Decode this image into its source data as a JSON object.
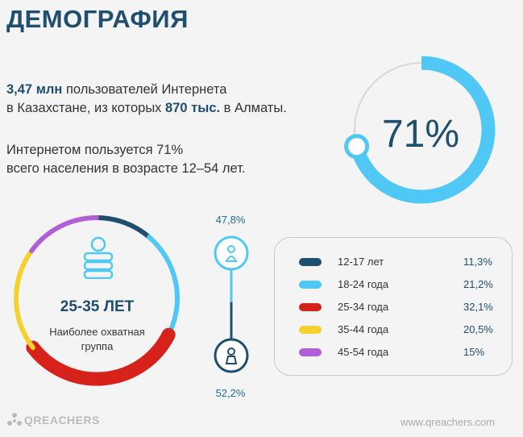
{
  "header": {
    "title": "ДЕМОГРАФИЯ"
  },
  "stats": {
    "users_value": "3,47 млн",
    "users_text": " пользователей Интернета",
    "line2_prefix": "в Казахстане, из которых ",
    "almaty_value": "870 тыс.",
    "line2_suffix": " в Алматы.",
    "pct_line1": "Интернетом пользуется 71%",
    "pct_line2": "всего населения в возрасте 12–54 лет."
  },
  "penetration": {
    "label": "71%",
    "value": 71
  },
  "age_group": {
    "title": "25-35 ЛЕТ",
    "subtitle_line1": "Наиболее охватная",
    "subtitle_line2": "группа"
  },
  "gender": {
    "female_pct": "47,8%",
    "male_pct": "52,2%"
  },
  "chart_data": [
    {
      "type": "pie",
      "title": "",
      "values": [
        71,
        29
      ],
      "colors": [
        "#4fc8f5",
        "#d8d8d8"
      ]
    },
    {
      "type": "pie",
      "title": "",
      "categories": [
        "12-17 лет",
        "18-24 года",
        "25-34 года",
        "35-44 года",
        "45-54 года"
      ],
      "values": [
        11.3,
        21.2,
        32.1,
        20.5,
        15
      ],
      "value_labels": [
        "11,3%",
        "21,2%",
        "32,1%",
        "20,5%",
        "15%"
      ],
      "colors": [
        "#1f4e6e",
        "#4fc8f5",
        "#d6221b",
        "#f5d130",
        "#b15fd6"
      ],
      "legend": "right"
    },
    {
      "type": "bar",
      "title": "",
      "categories": [
        "female",
        "male"
      ],
      "values": [
        47.8,
        52.2
      ],
      "colors": [
        "#4fc8f5",
        "#1f4e6e"
      ]
    }
  ],
  "footer": {
    "logo": "QREACHERS",
    "site": "www.qreachers.com"
  },
  "icons": {
    "person_female": "female-icon",
    "person_male": "male-icon",
    "person_group": "person-group-icon",
    "logo": "qreachers-logo-icon"
  }
}
